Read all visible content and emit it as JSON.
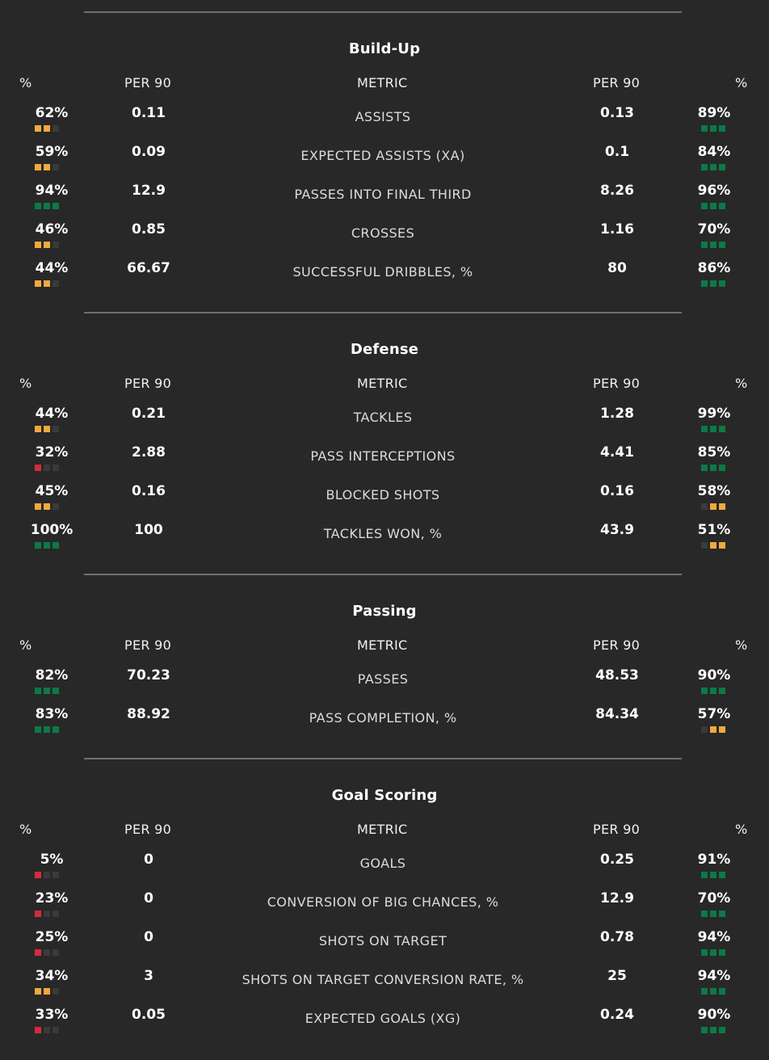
{
  "colors": {
    "background": "#282828",
    "high": "#0b7a47",
    "mid": "#f2a93b",
    "low": "#d22d3d",
    "empty": "#3a3a3a",
    "divider": "#6f6f6f"
  },
  "headers": {
    "pct": "%",
    "per90": "PER 90",
    "metric": "METRIC"
  },
  "sections": [
    {
      "title": "Build-Up",
      "rows": [
        {
          "left_pct": "62%",
          "left_per90": "0.11",
          "metric": "ASSISTS",
          "right_per90": "0.13",
          "right_pct": "89%",
          "left_level": "mid",
          "right_level": "high"
        },
        {
          "left_pct": "59%",
          "left_per90": "0.09",
          "metric": "EXPECTED ASSISTS (XA)",
          "right_per90": "0.1",
          "right_pct": "84%",
          "left_level": "mid",
          "right_level": "high"
        },
        {
          "left_pct": "94%",
          "left_per90": "12.9",
          "metric": "PASSES INTO FINAL THIRD",
          "right_per90": "8.26",
          "right_pct": "96%",
          "left_level": "high",
          "right_level": "high"
        },
        {
          "left_pct": "46%",
          "left_per90": "0.85",
          "metric": "CROSSES",
          "right_per90": "1.16",
          "right_pct": "70%",
          "left_level": "mid",
          "right_level": "high"
        },
        {
          "left_pct": "44%",
          "left_per90": "66.67",
          "metric": "SUCCESSFUL DRIBBLES, %",
          "right_per90": "80",
          "right_pct": "86%",
          "left_level": "mid",
          "right_level": "high"
        }
      ]
    },
    {
      "title": "Defense",
      "rows": [
        {
          "left_pct": "44%",
          "left_per90": "0.21",
          "metric": "TACKLES",
          "right_per90": "1.28",
          "right_pct": "99%",
          "left_level": "mid",
          "right_level": "high"
        },
        {
          "left_pct": "32%",
          "left_per90": "2.88",
          "metric": "PASS INTERCEPTIONS",
          "right_per90": "4.41",
          "right_pct": "85%",
          "left_level": "low",
          "right_level": "high"
        },
        {
          "left_pct": "45%",
          "left_per90": "0.16",
          "metric": "BLOCKED SHOTS",
          "right_per90": "0.16",
          "right_pct": "58%",
          "left_level": "mid",
          "right_level": "mid"
        },
        {
          "left_pct": "100%",
          "left_per90": "100",
          "metric": "TACKLES WON, %",
          "right_per90": "43.9",
          "right_pct": "51%",
          "left_level": "high",
          "right_level": "mid"
        }
      ]
    },
    {
      "title": "Passing",
      "rows": [
        {
          "left_pct": "82%",
          "left_per90": "70.23",
          "metric": "PASSES",
          "right_per90": "48.53",
          "right_pct": "90%",
          "left_level": "high",
          "right_level": "high"
        },
        {
          "left_pct": "83%",
          "left_per90": "88.92",
          "metric": "PASS COMPLETION, %",
          "right_per90": "84.34",
          "right_pct": "57%",
          "left_level": "high",
          "right_level": "mid"
        }
      ]
    },
    {
      "title": "Goal Scoring",
      "rows": [
        {
          "left_pct": "5%",
          "left_per90": "0",
          "metric": "GOALS",
          "right_per90": "0.25",
          "right_pct": "91%",
          "left_level": "low",
          "right_level": "high"
        },
        {
          "left_pct": "23%",
          "left_per90": "0",
          "metric": "CONVERSION OF BIG CHANCES, %",
          "right_per90": "12.9",
          "right_pct": "70%",
          "left_level": "low",
          "right_level": "high"
        },
        {
          "left_pct": "25%",
          "left_per90": "0",
          "metric": "SHOTS ON TARGET",
          "right_per90": "0.78",
          "right_pct": "94%",
          "left_level": "low",
          "right_level": "high"
        },
        {
          "left_pct": "34%",
          "left_per90": "3",
          "metric": "SHOTS ON TARGET CONVERSION RATE, %",
          "right_per90": "25",
          "right_pct": "94%",
          "left_level": "mid",
          "right_level": "high"
        },
        {
          "left_pct": "33%",
          "left_per90": "0.05",
          "metric": "EXPECTED GOALS (XG)",
          "right_per90": "0.24",
          "right_pct": "90%",
          "left_level": "low",
          "right_level": "high"
        }
      ]
    }
  ]
}
